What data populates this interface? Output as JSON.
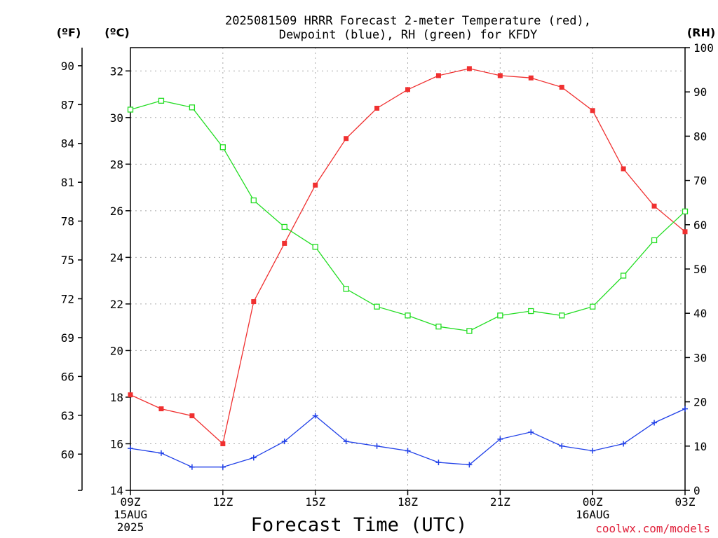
{
  "chart_data": {
    "type": "line",
    "title_lines": [
      "2025081509 HRRR Forecast 2-meter Temperature (red),",
      "Dewpoint (blue), RH (green) for KFDY"
    ],
    "xlabel": "Forecast Time (UTC)",
    "credit": "coolwx.com/models",
    "units": {
      "f": "(ºF)",
      "c": "(ºC)",
      "rh": "(RH)"
    },
    "x_ticks": [
      {
        "hour": 0,
        "lines": [
          "09Z",
          "15AUG",
          "2025"
        ]
      },
      {
        "hour": 3,
        "lines": [
          "12Z"
        ]
      },
      {
        "hour": 6,
        "lines": [
          "15Z"
        ]
      },
      {
        "hour": 9,
        "lines": [
          "18Z"
        ]
      },
      {
        "hour": 12,
        "lines": [
          "21Z"
        ]
      },
      {
        "hour": 15,
        "lines": [
          "00Z",
          "16AUG"
        ]
      },
      {
        "hour": 18,
        "lines": [
          "03Z"
        ]
      }
    ],
    "x_range": [
      0,
      18
    ],
    "celsius_axis": {
      "range": [
        14,
        33
      ],
      "ticks": [
        14,
        16,
        18,
        20,
        22,
        24,
        26,
        28,
        30,
        32
      ]
    },
    "fahrenheit_axis": {
      "ticks": [
        60,
        63,
        66,
        69,
        72,
        75,
        78,
        81,
        84,
        87,
        90
      ]
    },
    "rh_axis": {
      "range": [
        0,
        100
      ],
      "ticks": [
        0,
        10,
        20,
        30,
        40,
        50,
        60,
        70,
        80,
        90,
        100
      ]
    },
    "x": [
      "09Z",
      "10Z",
      "11Z",
      "12Z",
      "13Z",
      "14Z",
      "15Z",
      "16Z",
      "17Z",
      "18Z",
      "19Z",
      "20Z",
      "21Z",
      "22Z",
      "23Z",
      "00Z",
      "01Z",
      "02Z",
      "03Z"
    ],
    "series": [
      {
        "name": "Temperature",
        "color": "#f03030",
        "axis": "celsius",
        "marker": "filled-square",
        "values": [
          18.1,
          17.5,
          17.2,
          16.0,
          22.1,
          24.6,
          27.1,
          29.1,
          30.4,
          31.2,
          31.8,
          32.1,
          31.8,
          31.7,
          31.3,
          30.3,
          27.8,
          26.2,
          25.1
        ]
      },
      {
        "name": "Dewpoint",
        "color": "#2040e8",
        "axis": "celsius",
        "marker": "plus",
        "values": [
          15.8,
          15.6,
          15.0,
          15.0,
          15.4,
          16.1,
          17.2,
          16.1,
          15.9,
          15.7,
          15.2,
          15.1,
          16.2,
          16.5,
          15.9,
          15.7,
          16.0,
          16.9,
          17.5
        ]
      },
      {
        "name": "RH",
        "color": "#22dd22",
        "axis": "rh",
        "marker": "open-square",
        "values": [
          86,
          88,
          86.5,
          77.5,
          65.5,
          59.5,
          55,
          45.5,
          41.5,
          39.5,
          37,
          36,
          39.5,
          40.5,
          39.5,
          41.5,
          48.5,
          56.5,
          63
        ]
      }
    ]
  }
}
